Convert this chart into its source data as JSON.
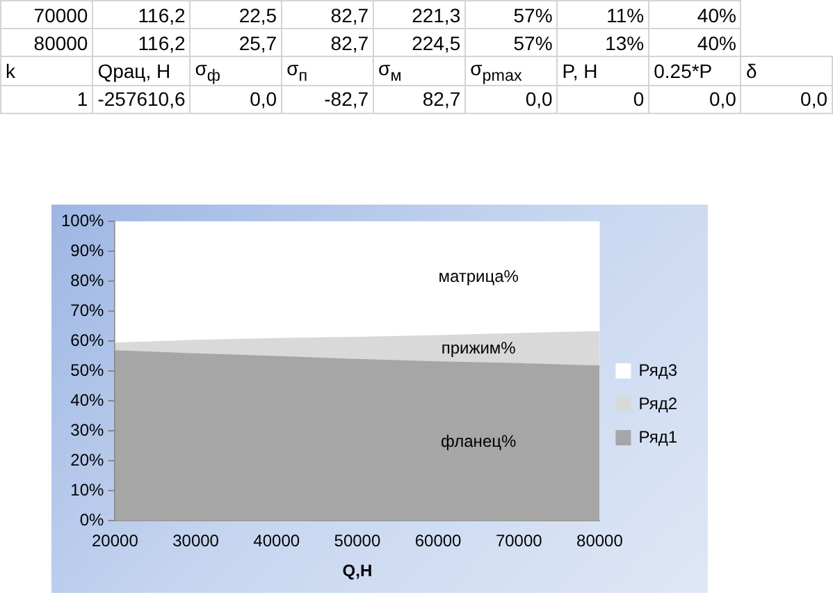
{
  "chart_data": {
    "type": "area",
    "stacked": true,
    "xlabel": "Q,H",
    "x": [
      20000,
      30000,
      40000,
      50000,
      60000,
      70000,
      80000
    ],
    "series": [
      {
        "name": "Ряд1",
        "color": "#a6a6a6",
        "values": [
          56.7,
          55.7,
          54.8,
          53.8,
          53.0,
          52.4,
          51.6
        ]
      },
      {
        "name": "Ряд2",
        "color": "#d9d9d9",
        "values": [
          2.6,
          4.5,
          6.0,
          7.4,
          8.8,
          10.1,
          11.5
        ]
      },
      {
        "name": "Ряд3",
        "color": "#ffffff",
        "values": [
          40.7,
          39.8,
          39.2,
          38.8,
          38.2,
          37.5,
          36.9
        ]
      }
    ],
    "xlim": [
      20000,
      80000
    ],
    "xticks": [
      20000,
      30000,
      40000,
      50000,
      60000,
      70000,
      80000
    ],
    "ylim": [
      0,
      100
    ],
    "yticks": [
      {
        "value": 0,
        "label": "0%"
      },
      {
        "value": 10,
        "label": "10%"
      },
      {
        "value": 20,
        "label": "20%"
      },
      {
        "value": 30,
        "label": "30%"
      },
      {
        "value": 40,
        "label": "40%"
      },
      {
        "value": 50,
        "label": "50%"
      },
      {
        "value": 60,
        "label": "60%"
      },
      {
        "value": 70,
        "label": "70%"
      },
      {
        "value": 80,
        "label": "80%"
      },
      {
        "value": 90,
        "label": "90%"
      },
      {
        "value": 100,
        "label": "100%"
      }
    ],
    "legend": "right",
    "grid": false,
    "annotations": [
      "70000\t116,2\t22,5\t82,7\t221,3\t57%\t11%\t40%",
      "80000\t116,2\t25,7\t82,7\t224,5\t57%\t13%\t40%",
      "k\tQрац, H\tσ$_{ф}$\tσ$_{п}$\tσ$_{м}$\tσ$_{pmax}$\tP, H\t0.25*P\tδ",
      "1\t-257610,6\t0,0\t-82,7\t82,7\t0,0\t0\t0,0\t0,0",
      "матрица%",
      "прижим%",
      "фланец%"
    ]
  }
}
